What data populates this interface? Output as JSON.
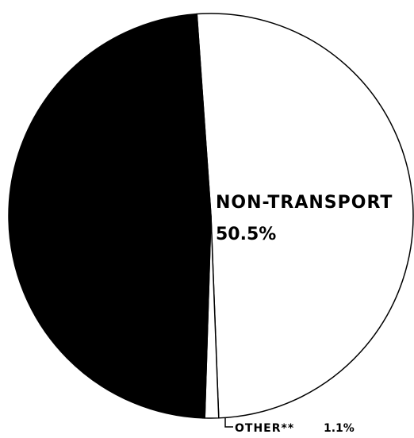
{
  "chart_data": {
    "type": "pie",
    "categories": [
      "NON-TRANSPORT",
      "OTHER**",
      null
    ],
    "values": [
      50.5,
      1.1,
      48.4
    ],
    "value_labels": [
      "50.5%",
      "1.1%",
      null
    ],
    "colors": [
      "#ffffff",
      "#ffffff",
      "#000000"
    ]
  }
}
